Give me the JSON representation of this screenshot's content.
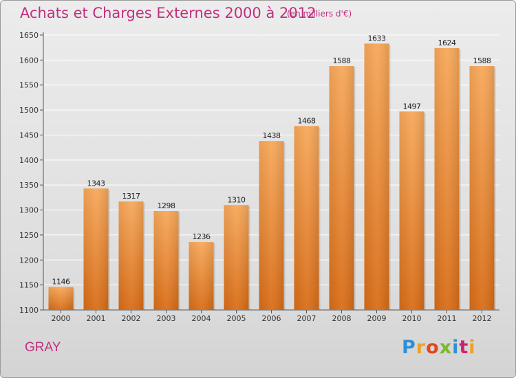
{
  "header": {
    "title": "Achats et Charges Externes 2000 à 2012",
    "unit": "(en milliers d'€)"
  },
  "footer": {
    "city": "GRAY",
    "logo_text": "Proxiti",
    "logo_letters": [
      {
        "ch": "P",
        "color": "#2e8fd8"
      },
      {
        "ch": "r",
        "color": "#f0a020"
      },
      {
        "ch": "o",
        "color": "#e04a1a"
      },
      {
        "ch": "x",
        "color": "#7ab828"
      },
      {
        "ch": "i",
        "color": "#2e8fd8"
      },
      {
        "ch": "t",
        "color": "#d02070"
      },
      {
        "ch": "i",
        "color": "#f0a020"
      }
    ]
  },
  "colors": {
    "title": "#c0307e",
    "bar_top": "#f7a85a",
    "bar_bottom": "#d86c16",
    "grid": "#ffffff"
  },
  "chart_data": {
    "type": "bar",
    "title": "Achats et Charges Externes 2000 à 2012",
    "categories": [
      "2000",
      "2001",
      "2002",
      "2003",
      "2004",
      "2005",
      "2006",
      "2007",
      "2008",
      "2009",
      "2010",
      "2011",
      "2012"
    ],
    "values": [
      1146,
      1343,
      1317,
      1298,
      1236,
      1310,
      1438,
      1468,
      1588,
      1633,
      1497,
      1624,
      1588
    ],
    "ylim": [
      1100,
      1650
    ],
    "yticks": [
      1100,
      1150,
      1200,
      1250,
      1300,
      1350,
      1400,
      1450,
      1500,
      1550,
      1600,
      1650
    ],
    "grid": true
  }
}
